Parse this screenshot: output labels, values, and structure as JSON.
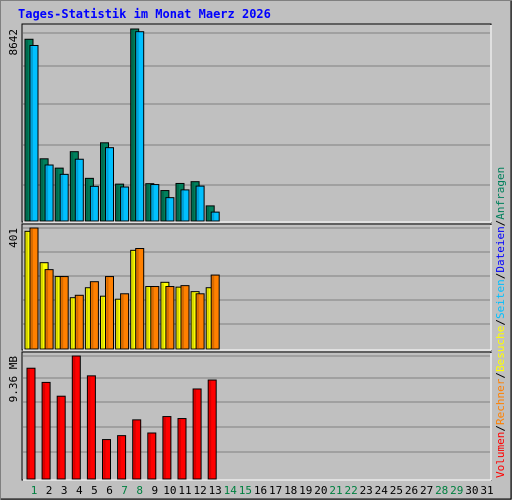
{
  "title": "Tages-Statistik im Monat Maerz 2026",
  "colors": {
    "background": "#c0c0c0",
    "title": "#0000ff",
    "frame": "#ffffff",
    "gridline": "#808080",
    "anfragen": "#00805c",
    "dateien": "#0000ff",
    "seiten": "#00c0ff",
    "besuche": "#ffff00",
    "rechner": "#ff8000",
    "volumen": "#ff0000",
    "day_weekend": "#008040",
    "day_weekday": "#000000"
  },
  "legend": [
    {
      "label": "Volumen",
      "color": "#ff0000"
    },
    {
      "label": "/",
      "color": "#000000"
    },
    {
      "label": "Rechner",
      "color": "#ff8000"
    },
    {
      "label": "/",
      "color": "#000000"
    },
    {
      "label": "Besuche",
      "color": "#ffff00"
    },
    {
      "label": "/",
      "color": "#000000"
    },
    {
      "label": "Seiten",
      "color": "#00c0ff"
    },
    {
      "label": "/",
      "color": "#000000"
    },
    {
      "label": "Dateien",
      "color": "#0000ff"
    },
    {
      "label": "/",
      "color": "#000000"
    },
    {
      "label": "Anfragen",
      "color": "#00805c"
    }
  ],
  "chart_data": [
    {
      "type": "bar",
      "panel": "top",
      "ymax_label": "8642",
      "ylim": [
        0,
        8642
      ],
      "categories": [
        "1",
        "2",
        "3",
        "4",
        "5",
        "6",
        "7",
        "8",
        "9",
        "10",
        "11",
        "12",
        "13"
      ],
      "series": [
        {
          "name": "Anfragen",
          "values": [
            8180,
            2800,
            2380,
            3120,
            1920,
            3520,
            1660,
            8642,
            1680,
            1370,
            1690,
            1770,
            680
          ]
        },
        {
          "name": "Seiten",
          "values": [
            7900,
            2520,
            2100,
            2780,
            1560,
            3300,
            1530,
            8520,
            1640,
            1050,
            1400,
            1570,
            400
          ]
        }
      ]
    },
    {
      "type": "bar",
      "panel": "middle",
      "ymax_label": "401",
      "ylim": [
        0,
        401
      ],
      "categories": [
        "1",
        "2",
        "3",
        "4",
        "5",
        "6",
        "7",
        "8",
        "9",
        "10",
        "11",
        "12",
        "13"
      ],
      "series": [
        {
          "name": "Besuche",
          "values": [
            390,
            286,
            240,
            170,
            203,
            175,
            165,
            327,
            207,
            221,
            205,
            190,
            203
          ]
        },
        {
          "name": "Rechner",
          "values": [
            401,
            263,
            240,
            178,
            223,
            240,
            183,
            333,
            207,
            207,
            210,
            183,
            245
          ]
        }
      ]
    },
    {
      "type": "bar",
      "panel": "bottom",
      "ymax_label": "9.36 MB",
      "ylim": [
        0,
        9.36
      ],
      "categories": [
        "1",
        "2",
        "3",
        "4",
        "5",
        "6",
        "7",
        "8",
        "9",
        "10",
        "11",
        "12",
        "13"
      ],
      "series": [
        {
          "name": "Volumen",
          "values": [
            8.43,
            7.35,
            6.3,
            9.36,
            7.85,
            3.0,
            3.3,
            4.5,
            3.5,
            4.75,
            4.6,
            6.85,
            7.53
          ]
        }
      ]
    }
  ],
  "days": [
    {
      "label": "1",
      "weekend": true
    },
    {
      "label": "2",
      "weekend": false
    },
    {
      "label": "3",
      "weekend": false
    },
    {
      "label": "4",
      "weekend": false
    },
    {
      "label": "5",
      "weekend": false
    },
    {
      "label": "6",
      "weekend": false
    },
    {
      "label": "7",
      "weekend": true
    },
    {
      "label": "8",
      "weekend": true
    },
    {
      "label": "9",
      "weekend": false
    },
    {
      "label": "10",
      "weekend": false
    },
    {
      "label": "11",
      "weekend": false
    },
    {
      "label": "12",
      "weekend": false
    },
    {
      "label": "13",
      "weekend": false
    },
    {
      "label": "14",
      "weekend": true
    },
    {
      "label": "15",
      "weekend": true
    },
    {
      "label": "16",
      "weekend": false
    },
    {
      "label": "17",
      "weekend": false
    },
    {
      "label": "18",
      "weekend": false
    },
    {
      "label": "19",
      "weekend": false
    },
    {
      "label": "20",
      "weekend": false
    },
    {
      "label": "21",
      "weekend": true
    },
    {
      "label": "22",
      "weekend": true
    },
    {
      "label": "23",
      "weekend": false
    },
    {
      "label": "24",
      "weekend": false
    },
    {
      "label": "25",
      "weekend": false
    },
    {
      "label": "26",
      "weekend": false
    },
    {
      "label": "27",
      "weekend": false
    },
    {
      "label": "28",
      "weekend": true
    },
    {
      "label": "29",
      "weekend": true
    },
    {
      "label": "30",
      "weekend": false
    },
    {
      "label": "31",
      "weekend": false
    }
  ]
}
